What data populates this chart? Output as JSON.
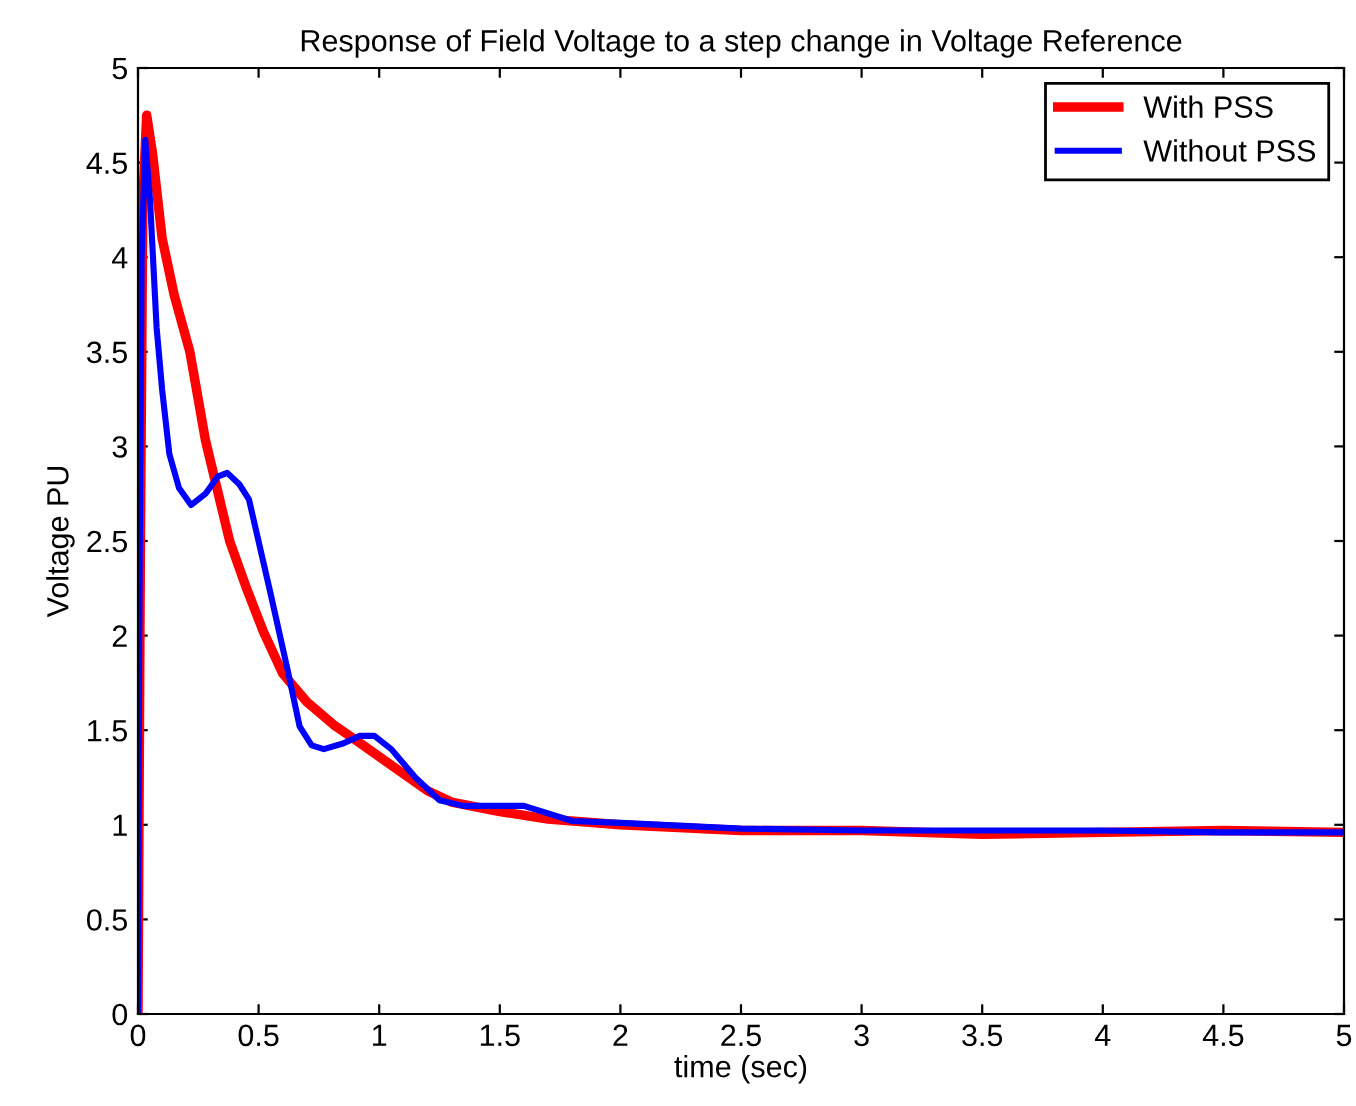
{
  "chart_data": {
    "type": "line",
    "title": "Response of Field Voltage to a step change in Voltage Reference",
    "xlabel": "time (sec)",
    "ylabel": "Voltage PU",
    "series": [
      {
        "name": "With PSS",
        "color": "#ff0000",
        "x": [
          0,
          0.01,
          0.02,
          0.036,
          0.06,
          0.1,
          0.15,
          0.215,
          0.28,
          0.38,
          0.45,
          0.52,
          0.6,
          0.7,
          0.81,
          0.9,
          1.0,
          1.1,
          1.2,
          1.3,
          1.5,
          1.7,
          2.0,
          2.5,
          3.0,
          3.5,
          4.0,
          4.5,
          5.0
        ],
        "values": [
          0,
          2.5,
          4.3,
          4.75,
          4.55,
          4.1,
          3.8,
          3.5,
          3.03,
          2.5,
          2.25,
          2.02,
          1.8,
          1.65,
          1.53,
          1.45,
          1.36,
          1.27,
          1.18,
          1.12,
          1.07,
          1.03,
          1.0,
          0.97,
          0.97,
          0.95,
          0.96,
          0.97,
          0.96
        ]
      },
      {
        "name": "Without PSS",
        "color": "#0000ff",
        "x": [
          0,
          0.005,
          0.015,
          0.03,
          0.05,
          0.077,
          0.1,
          0.13,
          0.17,
          0.22,
          0.28,
          0.33,
          0.37,
          0.42,
          0.46,
          0.55,
          0.62,
          0.67,
          0.72,
          0.77,
          0.85,
          0.92,
          0.98,
          1.05,
          1.15,
          1.25,
          1.35,
          1.5,
          1.6,
          1.7,
          1.8,
          2.0,
          2.5,
          3.0,
          3.5,
          4.0,
          4.5,
          5.0
        ],
        "values": [
          0,
          2.0,
          4.0,
          4.62,
          4.3,
          3.63,
          3.3,
          2.96,
          2.78,
          2.69,
          2.75,
          2.84,
          2.86,
          2.8,
          2.72,
          2.22,
          1.82,
          1.52,
          1.42,
          1.4,
          1.43,
          1.47,
          1.47,
          1.4,
          1.25,
          1.13,
          1.1,
          1.1,
          1.1,
          1.06,
          1.02,
          1.01,
          0.98,
          0.97,
          0.97,
          0.97,
          0.96,
          0.96
        ]
      }
    ],
    "xlim": [
      0,
      5
    ],
    "ylim": [
      0,
      5
    ],
    "xticks": [
      0,
      0.5,
      1,
      1.5,
      2,
      2.5,
      3,
      3.5,
      4,
      4.5,
      5
    ],
    "yticks": [
      0,
      0.5,
      1,
      1.5,
      2,
      2.5,
      3,
      3.5,
      4,
      4.5,
      5
    ],
    "legend": "top right",
    "grid": false
  }
}
